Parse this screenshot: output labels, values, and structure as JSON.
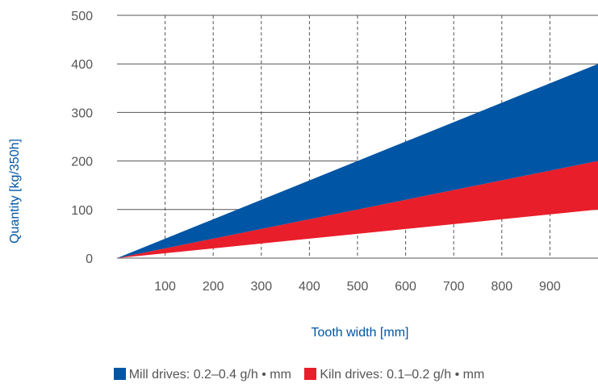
{
  "chart_data": {
    "type": "area",
    "xlabel": "Tooth width [mm]",
    "ylabel": "Quantity [kg/350h]",
    "xlim": [
      0,
      1000
    ],
    "ylim": [
      0,
      500
    ],
    "x_ticks": [
      "100",
      "200",
      "300",
      "400",
      "500",
      "600",
      "700",
      "800",
      "900"
    ],
    "y_ticks": [
      "0",
      "100",
      "200",
      "300",
      "400",
      "500"
    ],
    "x": [
      0,
      1000
    ],
    "grid": {
      "vertical": "dashed",
      "horizontal": "solid"
    },
    "legend_position": "bottom",
    "series": [
      {
        "name": "Mill drives: 0.2–0.4 g/h • mm",
        "color": "#0055a5",
        "lower": [
          0,
          200
        ],
        "upper": [
          0,
          400
        ]
      },
      {
        "name": "Kiln drives: 0.1–0.2 g/h • mm",
        "color": "#e81e2a",
        "lower": [
          0,
          100
        ],
        "upper": [
          0,
          200
        ]
      }
    ],
    "axis_title_color": "#0055a5"
  }
}
